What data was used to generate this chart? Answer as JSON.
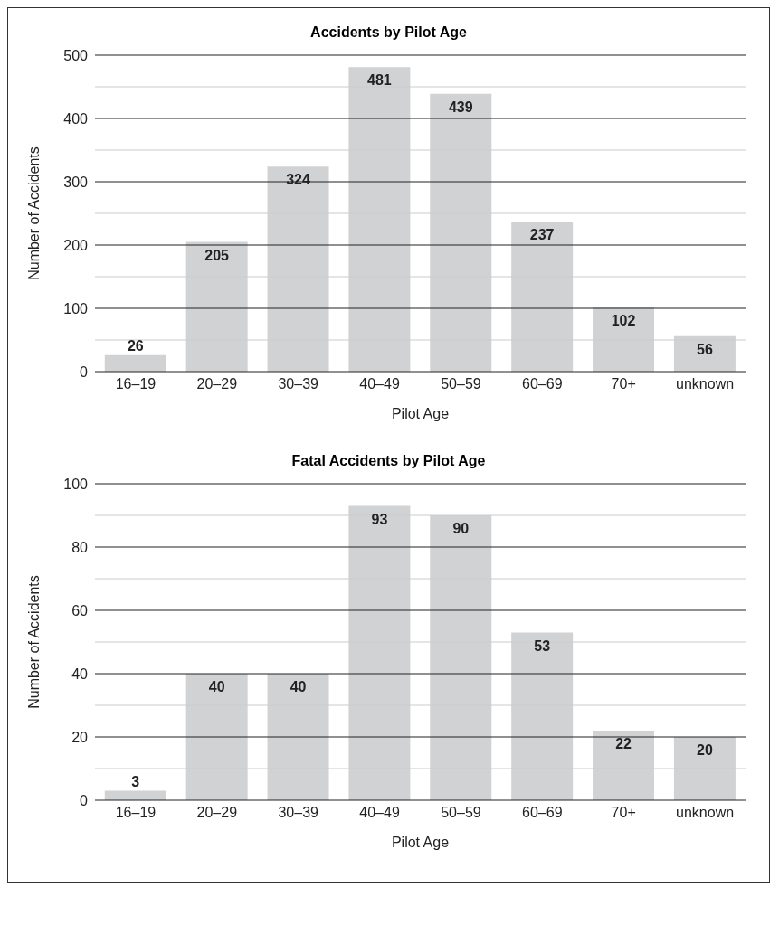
{
  "chart_data": [
    {
      "type": "bar",
      "title": "Accidents by Pilot Age",
      "xlabel": "Pilot Age",
      "ylabel": "Number of Accidents",
      "categories": [
        "16–19",
        "20–29",
        "30–39",
        "40–49",
        "50–59",
        "60–69",
        "70+",
        "unknown"
      ],
      "values": [
        26,
        205,
        324,
        481,
        439,
        237,
        102,
        56
      ],
      "color": "#d1d2d4",
      "ylim": [
        0,
        500
      ],
      "yticks": [
        0,
        {
          "value": 50,
          "label": null
        },
        100,
        {
          "value": 150,
          "label": null
        },
        200,
        {
          "value": 250,
          "label": null
        },
        300,
        {
          "value": 350,
          "label": null
        },
        400,
        {
          "value": 450,
          "label": null
        },
        500
      ],
      "grid": "y",
      "data_labels": true
    },
    {
      "type": "bar",
      "title": "Fatal Accidents by Pilot Age",
      "xlabel": "Pilot Age",
      "ylabel": "Number of Accidents",
      "categories": [
        "16–19",
        "20–29",
        "30–39",
        "40–49",
        "50–59",
        "60–69",
        "70+",
        "unknown"
      ],
      "values": [
        3,
        40,
        40,
        93,
        90,
        53,
        22,
        20
      ],
      "color": "#d1d2d4",
      "ylim": [
        0,
        100
      ],
      "yticks": [
        0,
        {
          "value": 10,
          "label": null
        },
        20,
        {
          "value": 30,
          "label": null
        },
        40,
        {
          "value": 50,
          "label": null
        },
        60,
        {
          "value": 70,
          "label": null
        },
        80,
        {
          "value": 90,
          "label": null
        },
        100
      ],
      "grid": "y",
      "data_labels": true
    }
  ]
}
